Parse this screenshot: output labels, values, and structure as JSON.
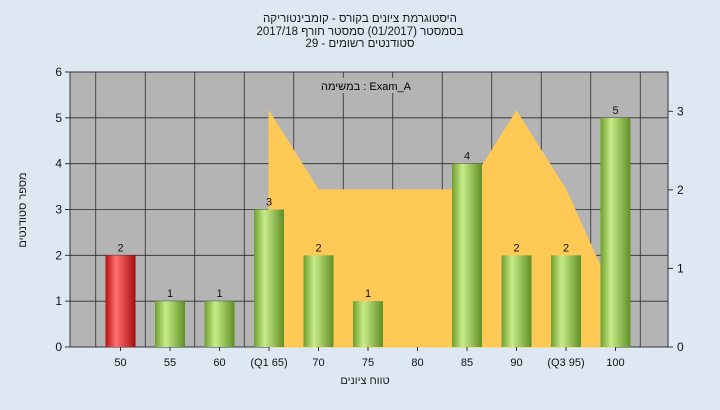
{
  "chart_data": {
    "type": "bar",
    "title_lines": [
      "היסטוגרמת ציונים בקורס - קומבינטוריקה",
      "בסמסטר  (01/2017)  סמסטר חורף 2017/18",
      "29 - סטודנטים רשומים"
    ],
    "xlabel": "טווח ציונים",
    "ylabel": "מספר סטודנטים",
    "legend_text": "Exam_A : במשימה",
    "categories": [
      "50",
      "55",
      "60",
      "(Q1 65)",
      "70",
      "75",
      "80",
      "85",
      "90",
      "(Q3 95)",
      "100"
    ],
    "values": [
      2,
      1,
      1,
      3,
      2,
      1,
      null,
      4,
      2,
      2,
      5
    ],
    "value_labels": [
      "2",
      "1",
      "1",
      "3",
      "2",
      "1",
      "",
      "4",
      "2",
      "2",
      "5"
    ],
    "highlight_index": 0,
    "ylim": [
      0,
      6
    ],
    "y_ticks": [
      "0",
      "1",
      "2",
      "3",
      "4",
      "5",
      "6"
    ],
    "y2lim": [
      0,
      3.5
    ],
    "y2_ticks": [
      "0",
      "1",
      "2",
      "3"
    ],
    "overlay_area": {
      "x": [
        3,
        4,
        5,
        6,
        7,
        8,
        9,
        10
      ],
      "y2": [
        3,
        2,
        2,
        2,
        2,
        3,
        2,
        0.6
      ]
    },
    "grid": true,
    "colors": {
      "bar": "#8cc34a",
      "bar_highlight": "#e02020",
      "area": "#ffc955",
      "plot_bg": "#b4b4b4",
      "page_bg": "#dde8f3"
    }
  }
}
